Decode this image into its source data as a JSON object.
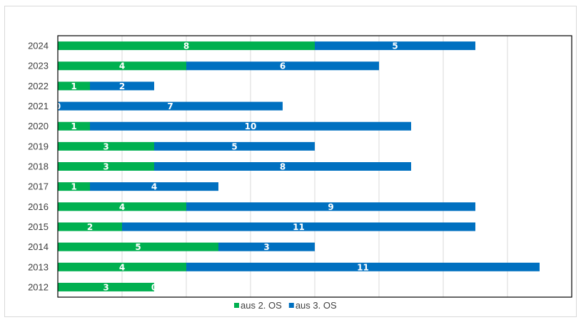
{
  "chart_data": {
    "type": "bar",
    "orientation": "horizontal",
    "stacked": true,
    "categories": [
      "2024",
      "2023",
      "2022",
      "2021",
      "2020",
      "2019",
      "2018",
      "2017",
      "2016",
      "2015",
      "2014",
      "2013",
      "2012"
    ],
    "series": [
      {
        "name": "aus 2. OS",
        "color": "#00b050",
        "values": [
          8,
          4,
          1,
          0,
          1,
          3,
          3,
          1,
          4,
          2,
          5,
          4,
          3
        ]
      },
      {
        "name": "aus 3. OS",
        "color": "#0070c0",
        "values": [
          5,
          6,
          2,
          7,
          10,
          5,
          8,
          4,
          9,
          11,
          3,
          11,
          0
        ]
      }
    ],
    "xlim": [
      0,
      16
    ],
    "grid": "vertical",
    "legend_position": "bottom"
  }
}
